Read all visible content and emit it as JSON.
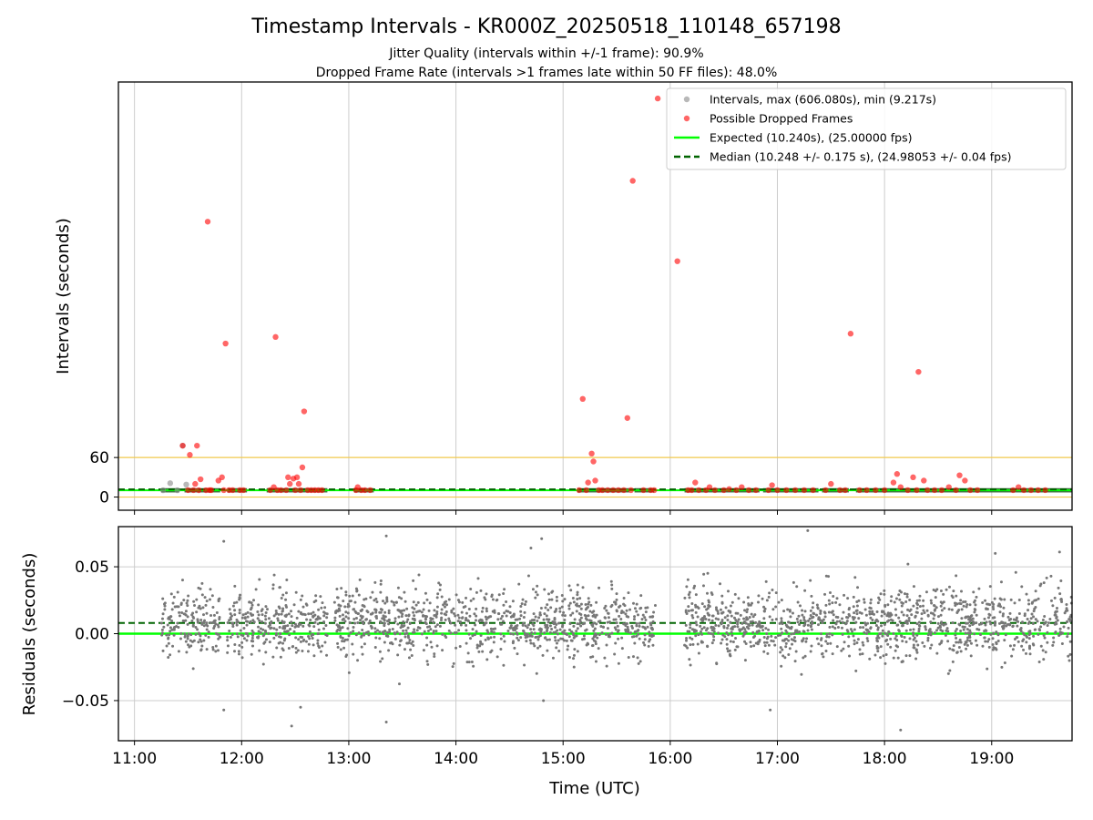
{
  "figure": {
    "title": "Timestamp Intervals - KR000Z_20250518_110148_657198",
    "subtitle_1": "Jitter Quality (intervals within +/-1 frame): 90.9%",
    "subtitle_2": "Dropped Frame Rate (intervals >1 frames late within 50 FF files): 48.0%"
  },
  "colors": {
    "intervals": "#888888",
    "dropped": "#ff0000",
    "expected": "#00ff00",
    "median": "#006400",
    "band": "#2e5e2e",
    "threshold": "#f2c94c",
    "residuals": "#777777",
    "grid": "#cccccc"
  },
  "chart_data": [
    {
      "type": "scatter",
      "name": "intervals",
      "xlabel": "",
      "ylabel": "Intervals (seconds)",
      "xlim": [
        "10:51",
        "19:45"
      ],
      "ylim": [
        -20,
        630
      ],
      "yticks": [
        0,
        60
      ],
      "yticklabels": [
        "0",
        "60"
      ],
      "grid": "x",
      "threshold_lines": [
        0,
        60
      ],
      "legend_position": "top-right",
      "legend": [
        "Intervals, max (606.080s), min (9.217s)",
        "Possible Dropped Frames",
        "Expected (10.240s), (25.00000 fps)",
        "Median (10.248 +/- 0.175 s), (24.98053 +/- 0.04 fps)"
      ],
      "lines": {
        "expected": 10.24,
        "median": 10.248
      },
      "band_segments": [
        [
          "11:15",
          "11:25"
        ],
        [
          "11:28",
          "11:48"
        ],
        [
          "11:52",
          "12:03"
        ],
        [
          "12:14",
          "12:48"
        ],
        [
          "13:03",
          "13:14"
        ],
        [
          "15:08",
          "15:37"
        ],
        [
          "15:40",
          "15:51"
        ],
        [
          "16:08",
          "16:50"
        ],
        [
          "16:52",
          "17:23"
        ],
        [
          "17:25",
          "17:40"
        ],
        [
          "17:44",
          "19:45"
        ]
      ],
      "series": [
        {
          "name": "Intervals",
          "points": [
            [
              "11:16",
              10.3
            ],
            [
              "11:20",
              21
            ],
            [
              "11:24",
              10.3
            ],
            [
              "11:27",
              78
            ],
            [
              "11:29",
              19
            ]
          ]
        },
        {
          "name": "Possible Dropped Frames",
          "points": [
            [
              "11:27",
              78
            ],
            [
              "11:30",
              10.5
            ],
            [
              "11:31",
              64
            ],
            [
              "11:33",
              10.5
            ],
            [
              "11:34",
              20
            ],
            [
              "11:35",
              78
            ],
            [
              "11:36",
              10.4
            ],
            [
              "11:37",
              27
            ],
            [
              "11:40",
              10.4
            ],
            [
              "11:41",
              418
            ],
            [
              "11:42",
              10.5
            ],
            [
              "11:43",
              10.5
            ],
            [
              "11:47",
              25
            ],
            [
              "11:49",
              30
            ],
            [
              "11:50",
              10.5
            ],
            [
              "11:51",
              233
            ],
            [
              "11:53",
              10.5
            ],
            [
              "11:55",
              10.5
            ],
            [
              "11:59",
              10.5
            ],
            [
              "12:01",
              10.5
            ],
            [
              "12:16",
              10.5
            ],
            [
              "12:18",
              15
            ],
            [
              "12:19",
              243
            ],
            [
              "12:20",
              10.5
            ],
            [
              "12:22",
              10.5
            ],
            [
              "12:25",
              10.5
            ],
            [
              "12:26",
              30
            ],
            [
              "12:27",
              20
            ],
            [
              "12:29",
              28
            ],
            [
              "12:30",
              10.5
            ],
            [
              "12:31",
              30
            ],
            [
              "12:32",
              20
            ],
            [
              "12:33",
              10.5
            ],
            [
              "12:34",
              45
            ],
            [
              "12:35",
              130
            ],
            [
              "12:37",
              10.5
            ],
            [
              "12:39",
              10.5
            ],
            [
              "12:41",
              10.5
            ],
            [
              "12:43",
              10.5
            ],
            [
              "12:45",
              10.5
            ],
            [
              "13:04",
              10.5
            ],
            [
              "13:05",
              15
            ],
            [
              "13:07",
              10.5
            ],
            [
              "13:09",
              10.5
            ],
            [
              "13:12",
              10.5
            ],
            [
              "15:09",
              10.5
            ],
            [
              "15:11",
              149
            ],
            [
              "15:13",
              10.5
            ],
            [
              "15:14",
              22
            ],
            [
              "15:16",
              66
            ],
            [
              "15:17",
              54
            ],
            [
              "15:18",
              25
            ],
            [
              "15:20",
              10.5
            ],
            [
              "15:22",
              10.5
            ],
            [
              "15:25",
              10.5
            ],
            [
              "15:28",
              10.5
            ],
            [
              "15:31",
              10.5
            ],
            [
              "15:34",
              10.5
            ],
            [
              "15:36",
              120
            ],
            [
              "15:38",
              10.5
            ],
            [
              "15:39",
              480
            ],
            [
              "15:45",
              10.5
            ],
            [
              "15:49",
              10.5
            ],
            [
              "15:51",
              10.5
            ],
            [
              "15:53",
              605
            ],
            [
              "16:04",
              358
            ],
            [
              "16:10",
              10.5
            ],
            [
              "16:12",
              10.5
            ],
            [
              "16:14",
              22
            ],
            [
              "16:16",
              10.5
            ],
            [
              "16:20",
              10.5
            ],
            [
              "16:22",
              15
            ],
            [
              "16:25",
              10.5
            ],
            [
              "16:30",
              10.5
            ],
            [
              "16:33",
              12
            ],
            [
              "16:37",
              10.5
            ],
            [
              "16:40",
              15
            ],
            [
              "16:44",
              10.5
            ],
            [
              "16:48",
              10.5
            ],
            [
              "16:55",
              10.5
            ],
            [
              "16:57",
              18
            ],
            [
              "17:00",
              10.5
            ],
            [
              "17:05",
              10.5
            ],
            [
              "17:10",
              10.5
            ],
            [
              "17:15",
              10.5
            ],
            [
              "17:20",
              10.5
            ],
            [
              "17:27",
              10.5
            ],
            [
              "17:30",
              20
            ],
            [
              "17:35",
              10.5
            ],
            [
              "17:38",
              10.5
            ],
            [
              "17:41",
              248
            ],
            [
              "17:46",
              10.5
            ],
            [
              "17:50",
              10.5
            ],
            [
              "17:55",
              10.5
            ],
            [
              "18:00",
              10.5
            ],
            [
              "18:05",
              22
            ],
            [
              "18:07",
              35
            ],
            [
              "18:09",
              15
            ],
            [
              "18:13",
              10.5
            ],
            [
              "18:16",
              30
            ],
            [
              "18:18",
              10.5
            ],
            [
              "18:19",
              190
            ],
            [
              "18:22",
              25
            ],
            [
              "18:24",
              10.5
            ],
            [
              "18:28",
              10.5
            ],
            [
              "18:32",
              10.5
            ],
            [
              "18:36",
              15
            ],
            [
              "18:40",
              10.5
            ],
            [
              "18:42",
              33
            ],
            [
              "18:45",
              25
            ],
            [
              "18:48",
              10.5
            ],
            [
              "18:52",
              10.5
            ],
            [
              "19:12",
              10.5
            ],
            [
              "19:15",
              15
            ],
            [
              "19:18",
              10.5
            ],
            [
              "19:22",
              10.5
            ],
            [
              "19:26",
              10.5
            ],
            [
              "19:30",
              10.5
            ]
          ]
        }
      ]
    },
    {
      "type": "scatter",
      "name": "residuals",
      "xlabel": "Time (UTC)",
      "ylabel": "Residuals (seconds)",
      "xlim": [
        "10:51",
        "19:45"
      ],
      "ylim": [
        -0.08,
        0.08
      ],
      "yticks": [
        -0.05,
        0.0,
        0.05
      ],
      "yticklabels": [
        "−0.05",
        "0.00",
        "0.05"
      ],
      "xticklabels": [
        "11:00",
        "12:00",
        "13:00",
        "14:00",
        "15:00",
        "16:00",
        "17:00",
        "18:00",
        "19:00"
      ],
      "grid": "both",
      "lines": {
        "expected": 0.0,
        "median": 0.008
      },
      "coverage": [
        [
          "11:15",
          "11:48",
          0.02
        ],
        [
          "11:52",
          "12:48",
          0.021
        ],
        [
          "12:52",
          "15:52",
          0.02
        ],
        [
          "16:08",
          "19:45",
          0.021
        ]
      ],
      "outliers": [
        [
          "11:50",
          0.069
        ],
        [
          "11:50",
          -0.057
        ],
        [
          "12:28",
          -0.069
        ],
        [
          "12:33",
          -0.055
        ],
        [
          "13:21",
          0.073
        ],
        [
          "13:21",
          -0.066
        ],
        [
          "14:42",
          0.064
        ],
        [
          "14:48",
          0.071
        ],
        [
          "14:49",
          -0.05
        ],
        [
          "16:56",
          -0.057
        ],
        [
          "17:17",
          0.077
        ],
        [
          "18:09",
          -0.072
        ],
        [
          "19:02",
          0.06
        ],
        [
          "19:38",
          0.061
        ]
      ]
    }
  ]
}
